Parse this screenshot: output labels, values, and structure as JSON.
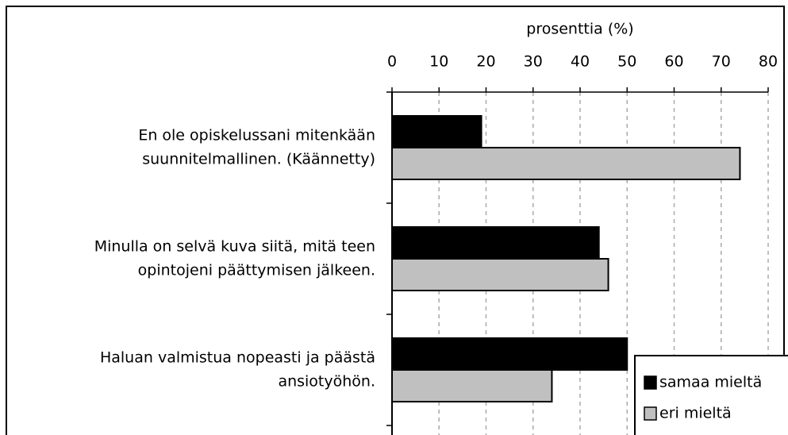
{
  "chart_data": {
    "type": "barh",
    "xlabel": "prosenttia (%)",
    "categories": [
      [
        "En ole opiskelussani mitenkään",
        "suunnitelmallinen. (Käännetty)"
      ],
      [
        "Minulla on selvä kuva siitä, mitä teen",
        "opintojeni päättymisen jälkeen."
      ],
      [
        "Haluan valmistua nopeasti ja päästä",
        "ansiotyöhön."
      ]
    ],
    "series": [
      {
        "name": "samaa mieltä",
        "color": "#000000",
        "values": [
          19,
          44,
          50
        ]
      },
      {
        "name": "eri mieltä",
        "color": "#c0c0c0",
        "values": [
          74,
          46,
          34
        ]
      }
    ],
    "xlim": [
      0,
      80
    ],
    "xticks": [
      0,
      10,
      20,
      30,
      40,
      50,
      60,
      70,
      80
    ],
    "grid": true,
    "legend": "lower right"
  }
}
